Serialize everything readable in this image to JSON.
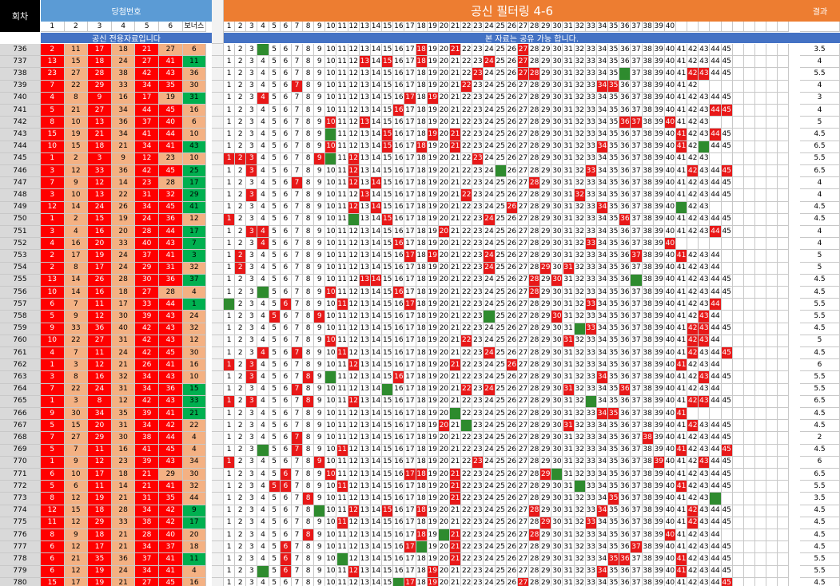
{
  "header": {
    "round_label": "회차",
    "winning_label": "당첨번호",
    "filter_title": "공신  필터링 4-6",
    "result_label": "결과",
    "notice_left": "공신 전용자료입니다",
    "notice_right": "본 자료는 공유 가능 합니다.",
    "win_columns": [
      "1",
      "2",
      "3",
      "4",
      "5",
      "6",
      "보너스"
    ]
  },
  "colors": {
    "header_black": "#000000",
    "header_blue": "#5b9bd5",
    "header_orange": "#ed7d31",
    "notice_blue": "#4472c4",
    "win_cell_red": "#ff0000",
    "win_cell_peach": "#f4b183",
    "bonus_green": "#00b050",
    "filter_red": "#e81818",
    "filter_green": "#2e8b2e",
    "round_col_bg": "#d9d9d9"
  },
  "rows": [
    {
      "round": "736",
      "nums": [
        2,
        11,
        17,
        18,
        21,
        27
      ],
      "bonus": 6,
      "fcount": 45,
      "red": [
        18,
        21,
        27
      ],
      "green": [
        4
      ],
      "result": "3.5"
    },
    {
      "round": "737",
      "nums": [
        13,
        15,
        18,
        24,
        27,
        41
      ],
      "bonus": 11,
      "fcount": 45,
      "red": [
        13,
        15,
        18,
        24,
        27
      ],
      "green": [],
      "result": "4"
    },
    {
      "round": "738",
      "nums": [
        23,
        27,
        28,
        38,
        42,
        43
      ],
      "bonus": 36,
      "fcount": 45,
      "red": [
        23,
        27,
        28,
        42,
        43
      ],
      "green": [
        36
      ],
      "result": "5.5"
    },
    {
      "round": "739",
      "nums": [
        7,
        22,
        29,
        33,
        34,
        35
      ],
      "bonus": 30,
      "fcount": 42,
      "red": [
        7,
        22,
        34,
        35
      ],
      "green": [],
      "result": "4"
    },
    {
      "round": "740",
      "nums": [
        4,
        8,
        9,
        16,
        17,
        19
      ],
      "bonus": 31,
      "fcount": 45,
      "red": [
        4,
        17,
        19
      ],
      "green": [],
      "result": "3"
    },
    {
      "round": "741",
      "nums": [
        5,
        21,
        27,
        34,
        44,
        45
      ],
      "bonus": 16,
      "fcount": 45,
      "red": [
        16,
        44,
        45
      ],
      "green": [],
      "result": "4"
    },
    {
      "round": "742",
      "nums": [
        8,
        10,
        13,
        36,
        37,
        40
      ],
      "bonus": 6,
      "fcount": 43,
      "red": [
        10,
        13,
        36,
        37,
        40
      ],
      "green": [],
      "result": "5"
    },
    {
      "round": "743",
      "nums": [
        15,
        19,
        21,
        34,
        41,
        44
      ],
      "bonus": 10,
      "fcount": 45,
      "red": [
        15,
        19,
        21,
        41,
        44
      ],
      "green": [
        10
      ],
      "result": "4.5"
    },
    {
      "round": "744",
      "nums": [
        10,
        15,
        18,
        21,
        34,
        41
      ],
      "bonus": 43,
      "fcount": 45,
      "red": [
        10,
        15,
        18,
        21,
        34,
        41
      ],
      "green": [
        43
      ],
      "result": "6.5"
    },
    {
      "round": "745",
      "nums": [
        1,
        2,
        3,
        9,
        12,
        23
      ],
      "bonus": 10,
      "fcount": 43,
      "red": [
        1,
        2,
        3,
        9,
        12,
        23
      ],
      "green": [
        10
      ],
      "result": "5.5"
    },
    {
      "round": "746",
      "nums": [
        3,
        12,
        33,
        36,
        42,
        45
      ],
      "bonus": 25,
      "fcount": 45,
      "red": [
        3,
        12,
        33,
        42,
        45
      ],
      "green": [
        25
      ],
      "result": "6.5"
    },
    {
      "round": "747",
      "nums": [
        7,
        9,
        12,
        14,
        23,
        28
      ],
      "bonus": 17,
      "fcount": 45,
      "red": [
        7,
        12,
        14,
        28
      ],
      "green": [],
      "result": "4"
    },
    {
      "round": "748",
      "nums": [
        3,
        10,
        13,
        22,
        31,
        32
      ],
      "bonus": 29,
      "fcount": 45,
      "red": [
        3,
        13,
        22,
        32
      ],
      "green": [],
      "result": "4"
    },
    {
      "round": "749",
      "nums": [
        12,
        14,
        24,
        26,
        34,
        45
      ],
      "bonus": 41,
      "fcount": 43,
      "red": [
        12,
        14,
        26,
        34
      ],
      "green": [
        41
      ],
      "result": "4.5"
    },
    {
      "round": "750",
      "nums": [
        1,
        2,
        15,
        19,
        24,
        36
      ],
      "bonus": 12,
      "fcount": 45,
      "red": [
        1,
        15,
        24,
        36
      ],
      "green": [
        12
      ],
      "result": "4.5"
    },
    {
      "round": "751",
      "nums": [
        3,
        4,
        16,
        20,
        28,
        44
      ],
      "bonus": 17,
      "fcount": 45,
      "red": [
        3,
        4,
        20,
        44
      ],
      "green": [],
      "result": "4"
    },
    {
      "round": "752",
      "nums": [
        4,
        16,
        20,
        33,
        40,
        43
      ],
      "bonus": 7,
      "fcount": 40,
      "red": [
        4,
        16,
        33,
        40
      ],
      "green": [],
      "result": "4"
    },
    {
      "round": "753",
      "nums": [
        2,
        17,
        19,
        24,
        37,
        41
      ],
      "bonus": 3,
      "fcount": 44,
      "red": [
        2,
        17,
        19,
        24,
        37,
        41
      ],
      "green": [],
      "result": "5"
    },
    {
      "round": "754",
      "nums": [
        2,
        8,
        17,
        24,
        29,
        31
      ],
      "bonus": 32,
      "fcount": 44,
      "red": [
        2,
        24,
        29,
        31
      ],
      "green": [],
      "result": "5"
    },
    {
      "round": "755",
      "nums": [
        13,
        14,
        26,
        28,
        30,
        36
      ],
      "bonus": 37,
      "fcount": 45,
      "red": [
        13,
        14,
        28,
        30
      ],
      "green": [
        37
      ],
      "result": "4.5"
    },
    {
      "round": "756",
      "nums": [
        10,
        14,
        16,
        18,
        27,
        28
      ],
      "bonus": 4,
      "fcount": 45,
      "red": [
        10,
        16,
        28
      ],
      "green": [
        4
      ],
      "result": "4.5"
    },
    {
      "round": "757",
      "nums": [
        6,
        7,
        11,
        17,
        33,
        44
      ],
      "bonus": 1,
      "fcount": 44,
      "red": [
        6,
        11,
        17,
        33,
        44
      ],
      "green": [
        1
      ],
      "result": "5.5"
    },
    {
      "round": "758",
      "nums": [
        5,
        9,
        12,
        30,
        39,
        43
      ],
      "bonus": 24,
      "fcount": 44,
      "red": [
        5,
        9,
        30,
        43
      ],
      "green": [
        24
      ],
      "result": "5.5"
    },
    {
      "round": "759",
      "nums": [
        9,
        33,
        36,
        40,
        42,
        43
      ],
      "bonus": 32,
      "fcount": 45,
      "red": [
        33,
        42,
        43
      ],
      "green": [
        32
      ],
      "result": "4.5"
    },
    {
      "round": "760",
      "nums": [
        10,
        22,
        27,
        31,
        42,
        43
      ],
      "bonus": 12,
      "fcount": 44,
      "red": [
        10,
        22,
        31,
        42,
        43
      ],
      "green": [],
      "result": "5"
    },
    {
      "round": "761",
      "nums": [
        4,
        7,
        11,
        24,
        42,
        45
      ],
      "bonus": 30,
      "fcount": 45,
      "red": [
        4,
        7,
        11,
        24,
        42,
        45
      ],
      "green": [],
      "result": "4.5"
    },
    {
      "round": "762",
      "nums": [
        1,
        3,
        12,
        21,
        26,
        41
      ],
      "bonus": 16,
      "fcount": 44,
      "red": [
        1,
        3,
        12,
        21,
        26,
        41
      ],
      "green": [],
      "result": "6"
    },
    {
      "round": "763",
      "nums": [
        3,
        8,
        16,
        32,
        34,
        43
      ],
      "bonus": 10,
      "fcount": 45,
      "red": [
        3,
        8,
        16,
        34,
        43
      ],
      "green": [
        10
      ],
      "result": "5.5"
    },
    {
      "round": "764",
      "nums": [
        7,
        22,
        24,
        31,
        34,
        36
      ],
      "bonus": 15,
      "fcount": 44,
      "red": [
        7,
        22,
        24,
        31,
        36
      ],
      "green": [
        15
      ],
      "result": "5.5"
    },
    {
      "round": "765",
      "nums": [
        1,
        3,
        8,
        12,
        42,
        43
      ],
      "bonus": 33,
      "fcount": 45,
      "red": [
        1,
        3,
        8,
        12,
        42,
        43
      ],
      "green": [
        33
      ],
      "result": "6.5"
    },
    {
      "round": "766",
      "nums": [
        9,
        30,
        34,
        35,
        39,
        41
      ],
      "bonus": 21,
      "fcount": 41,
      "red": [
        34,
        35,
        41
      ],
      "green": [
        21
      ],
      "result": "4.5"
    },
    {
      "round": "767",
      "nums": [
        5,
        15,
        20,
        31,
        34,
        42
      ],
      "bonus": 22,
      "fcount": 45,
      "red": [
        20,
        31,
        42
      ],
      "green": [
        22
      ],
      "result": "4.5"
    },
    {
      "round": "768",
      "nums": [
        7,
        27,
        29,
        30,
        38,
        44
      ],
      "bonus": 4,
      "fcount": 45,
      "red": [
        7,
        38
      ],
      "green": [],
      "result": "2"
    },
    {
      "round": "769",
      "nums": [
        5,
        7,
        11,
        16,
        41,
        45
      ],
      "bonus": 4,
      "fcount": 45,
      "red": [
        7,
        11,
        41,
        45
      ],
      "green": [
        4
      ],
      "result": "4.5"
    },
    {
      "round": "770",
      "nums": [
        1,
        9,
        12,
        23,
        39,
        43
      ],
      "bonus": 34,
      "fcount": 45,
      "red": [
        1,
        9,
        23,
        39,
        43
      ],
      "green": [],
      "result": "6"
    },
    {
      "round": "771",
      "nums": [
        6,
        10,
        17,
        18,
        21,
        29
      ],
      "bonus": 30,
      "fcount": 45,
      "red": [
        6,
        10,
        17,
        18,
        21,
        29
      ],
      "green": [
        30
      ],
      "result": "6.5"
    },
    {
      "round": "772",
      "nums": [
        5,
        6,
        11,
        14,
        21,
        41
      ],
      "bonus": 32,
      "fcount": 45,
      "red": [
        5,
        6,
        11,
        21,
        41
      ],
      "green": [
        32
      ],
      "result": "5.5"
    },
    {
      "round": "773",
      "nums": [
        8,
        12,
        19,
        21,
        31,
        35
      ],
      "bonus": 44,
      "fcount": 44,
      "red": [
        8,
        21,
        35
      ],
      "green": [
        44
      ],
      "result": "3.5"
    },
    {
      "round": "774",
      "nums": [
        12,
        15,
        18,
        28,
        34,
        42
      ],
      "bonus": 9,
      "fcount": 45,
      "red": [
        12,
        15,
        18,
        28,
        34,
        42
      ],
      "green": [
        9
      ],
      "result": "4.5"
    },
    {
      "round": "775",
      "nums": [
        11,
        12,
        29,
        33,
        38,
        42
      ],
      "bonus": 17,
      "fcount": 45,
      "red": [
        11,
        29,
        33,
        42
      ],
      "green": [],
      "result": "4.5"
    },
    {
      "round": "776",
      "nums": [
        8,
        9,
        18,
        21,
        28,
        40
      ],
      "bonus": 20,
      "fcount": 44,
      "red": [
        8,
        18,
        21,
        28,
        40
      ],
      "green": [
        20
      ],
      "result": "4.5"
    },
    {
      "round": "777",
      "nums": [
        6,
        12,
        17,
        21,
        34,
        37
      ],
      "bonus": 18,
      "fcount": 45,
      "red": [
        6,
        17,
        21,
        37
      ],
      "green": [
        18
      ],
      "result": "4.5"
    },
    {
      "round": "778",
      "nums": [
        6,
        21,
        35,
        36,
        37,
        41
      ],
      "bonus": 11,
      "fcount": 45,
      "red": [
        6,
        21,
        35,
        36,
        41
      ],
      "green": [
        11
      ],
      "result": "5.5"
    },
    {
      "round": "779",
      "nums": [
        6,
        12,
        19,
        24,
        34,
        41
      ],
      "bonus": 4,
      "fcount": 45,
      "red": [
        6,
        12,
        19,
        34,
        41
      ],
      "green": [
        4
      ],
      "result": "5.5"
    },
    {
      "round": "780",
      "nums": [
        15,
        17,
        19,
        21,
        27,
        45
      ],
      "bonus": 16,
      "fcount": 45,
      "red": [
        17,
        19,
        27,
        45
      ],
      "green": [
        16
      ],
      "result": "4.5"
    }
  ]
}
